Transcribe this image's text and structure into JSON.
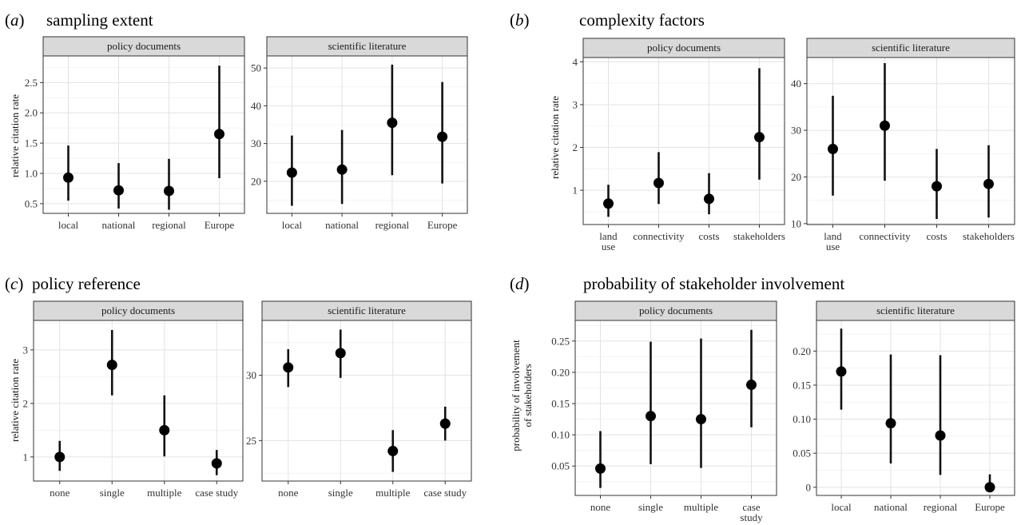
{
  "figure": {
    "panels": [
      {
        "letter": "a",
        "title": "sampling extent",
        "ylabel": [
          "relative citation rate"
        ],
        "facets": [
          {
            "strip": "policy documents",
            "chart_data": {
              "type": "scatter",
              "categories": [
                "local",
                "national",
                "regional",
                "Europe"
              ],
              "estimate": [
                0.93,
                0.72,
                0.71,
                1.65
              ],
              "lower": [
                0.55,
                0.42,
                0.4,
                0.92
              ],
              "upper": [
                1.46,
                1.17,
                1.24,
                2.78
              ],
              "yticks": [
                0.5,
                1.0,
                1.5,
                2.0,
                2.5
              ],
              "ytick_labels": [
                "0.5",
                "1.0",
                "1.5",
                "2.0",
                "2.5"
              ],
              "ylim": [
                0.34,
                2.94
              ]
            }
          },
          {
            "strip": "scientific literature",
            "chart_data": {
              "type": "scatter",
              "categories": [
                "local",
                "national",
                "regional",
                "Europe"
              ],
              "estimate": [
                22.3,
                23.1,
                35.5,
                31.8
              ],
              "lower": [
                13.5,
                14.0,
                21.6,
                19.4
              ],
              "upper": [
                32.1,
                33.6,
                50.9,
                46.3
              ],
              "yticks": [
                20,
                30,
                40,
                50
              ],
              "ytick_labels": [
                "20",
                "30",
                "40",
                "50"
              ],
              "ylim": [
                11.5,
                53.2
              ]
            }
          }
        ]
      },
      {
        "letter": "b",
        "title": "complexity factors",
        "ylabel": [
          "relative citation rate"
        ],
        "facets": [
          {
            "strip": "policy documents",
            "chart_data": {
              "type": "scatter",
              "categories": [
                [
                  "land",
                  "use"
                ],
                [
                  "connectivity"
                ],
                [
                  "costs"
                ],
                [
                  "stakeholders"
                ]
              ],
              "estimate": [
                0.69,
                1.17,
                0.8,
                2.24
              ],
              "lower": [
                0.38,
                0.68,
                0.44,
                1.25
              ],
              "upper": [
                1.13,
                1.89,
                1.4,
                3.85
              ],
              "yticks": [
                1,
                2,
                3,
                4
              ],
              "ytick_labels": [
                "1",
                "2",
                "3",
                "4"
              ],
              "ylim": [
                0.2,
                4.1
              ]
            }
          },
          {
            "strip": "scientific literature",
            "chart_data": {
              "type": "scatter",
              "categories": [
                [
                  "land",
                  "use"
                ],
                [
                  "connectivity"
                ],
                [
                  "costs"
                ],
                [
                  "stakeholders"
                ]
              ],
              "estimate": [
                26.0,
                31.0,
                18.0,
                18.5
              ],
              "lower": [
                16.0,
                19.2,
                11.0,
                11.3
              ],
              "upper": [
                37.4,
                44.4,
                26.0,
                26.8
              ],
              "yticks": [
                10,
                20,
                30,
                40
              ],
              "ytick_labels": [
                "10",
                "20",
                "30",
                "40"
              ],
              "ylim": [
                9.8,
                45.6
              ]
            }
          }
        ]
      },
      {
        "letter": "c",
        "title": "policy reference",
        "ylabel": [
          "relative citation rate"
        ],
        "facets": [
          {
            "strip": "policy documents",
            "chart_data": {
              "type": "scatter",
              "categories": [
                "none",
                "single",
                "multiple",
                "case study"
              ],
              "estimate": [
                1.0,
                2.72,
                1.5,
                0.88
              ],
              "lower": [
                0.74,
                2.15,
                1.01,
                0.66
              ],
              "upper": [
                1.3,
                3.37,
                2.15,
                1.13
              ],
              "yticks": [
                1,
                2,
                3
              ],
              "ytick_labels": [
                "1",
                "2",
                "3"
              ],
              "ylim": [
                0.55,
                3.55
              ]
            }
          },
          {
            "strip": "scientific literature",
            "chart_data": {
              "type": "scatter",
              "categories": [
                "none",
                "single",
                "multiple",
                "case study"
              ],
              "estimate": [
                30.6,
                31.7,
                24.2,
                26.3
              ],
              "lower": [
                29.1,
                29.8,
                22.6,
                25.0
              ],
              "upper": [
                32.0,
                33.5,
                25.8,
                27.6
              ],
              "yticks": [
                25,
                30
              ],
              "ytick_labels": [
                "25",
                "30"
              ],
              "ylim": [
                21.9,
                34.2
              ]
            }
          }
        ]
      },
      {
        "letter": "d",
        "title": "probability of stakeholder involvement",
        "ylabel": [
          "probability of involvement",
          "of stakeholders"
        ],
        "facets": [
          {
            "strip": "policy documents",
            "chart_data": {
              "type": "scatter",
              "categories": [
                [
                  "none"
                ],
                [
                  "single"
                ],
                [
                  "multiple"
                ],
                [
                  "case",
                  "study"
                ]
              ],
              "estimate": [
                0.046,
                0.13,
                0.125,
                0.18
              ],
              "lower": [
                0.015,
                0.053,
                0.047,
                0.112
              ],
              "upper": [
                0.106,
                0.249,
                0.254,
                0.268
              ],
              "yticks": [
                0.05,
                0.1,
                0.15,
                0.2,
                0.25
              ],
              "ytick_labels": [
                "0.05",
                "0.10",
                "0.15",
                "0.20",
                "0.25"
              ],
              "ylim": [
                0.003,
                0.283
              ]
            }
          },
          {
            "strip": "scientific literature",
            "chart_data": {
              "type": "scatter",
              "categories": [
                "local",
                "national",
                "regional",
                "Europe"
              ],
              "estimate": [
                0.17,
                0.094,
                0.076,
                0.0
              ],
              "lower": [
                0.114,
                0.035,
                0.018,
                0.0
              ],
              "upper": [
                0.233,
                0.195,
                0.194,
                0.019
              ],
              "yticks": [
                0,
                0.05,
                0.1,
                0.15,
                0.2
              ],
              "ytick_labels": [
                "0",
                "0.05",
                "0.10",
                "0.15",
                "0.20"
              ],
              "ylim": [
                -0.012,
                0.245
              ]
            }
          }
        ]
      }
    ]
  }
}
